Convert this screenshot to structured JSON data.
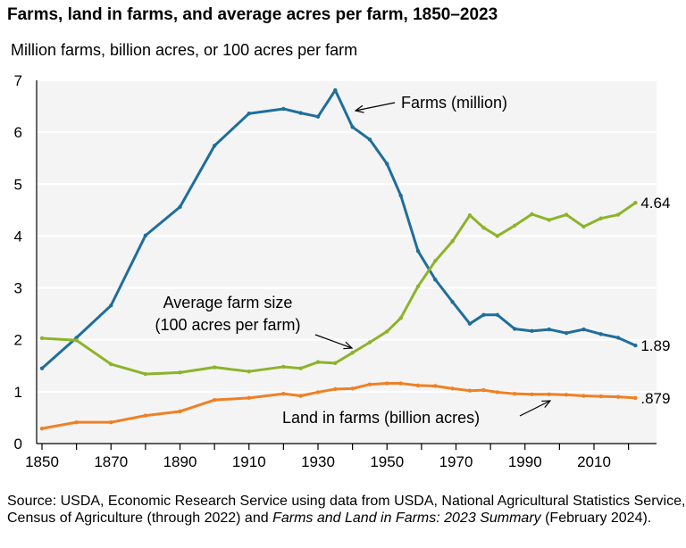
{
  "chart_data": {
    "type": "line",
    "title": "Farms, land in farms, and average acres per farm, 1850–2023",
    "subtitle": "Million farms, billion acres, or 100 acres per farm",
    "ylim": [
      0,
      7
    ],
    "yticks": [
      0,
      1,
      2,
      3,
      4,
      5,
      6,
      7
    ],
    "xlim": [
      1847,
      2027
    ],
    "xtick_labels": [
      1850,
      1870,
      1890,
      1910,
      1930,
      1950,
      1970,
      1990,
      2010
    ],
    "grid": "horizontal",
    "x": [
      1850,
      1860,
      1870,
      1880,
      1890,
      1900,
      1910,
      1920,
      1925,
      1930,
      1935,
      1940,
      1945,
      1950,
      1954,
      1959,
      1964,
      1969,
      1974,
      1978,
      1982,
      1987,
      1992,
      1997,
      2002,
      2007,
      2012,
      2017,
      2022
    ],
    "series": [
      {
        "name": "Farms (million)",
        "color": "#1f6e9c",
        "end_label": "1.89",
        "values": [
          1.45,
          2.04,
          2.66,
          4.01,
          4.56,
          5.74,
          6.36,
          6.45,
          6.37,
          6.3,
          6.81,
          6.1,
          5.86,
          5.39,
          4.78,
          3.71,
          3.16,
          2.73,
          2.31,
          2.48,
          2.48,
          2.21,
          2.17,
          2.2,
          2.13,
          2.2,
          2.11,
          2.04,
          1.89
        ]
      },
      {
        "name": "Average farm size (100 acres per farm)",
        "color": "#8db32a",
        "end_label": "4.64",
        "values": [
          2.03,
          1.99,
          1.53,
          1.34,
          1.37,
          1.47,
          1.39,
          1.48,
          1.45,
          1.57,
          1.55,
          1.75,
          1.95,
          2.16,
          2.42,
          3.03,
          3.52,
          3.9,
          4.4,
          4.16,
          4.0,
          4.2,
          4.42,
          4.31,
          4.41,
          4.18,
          4.34,
          4.41,
          4.64
        ]
      },
      {
        "name": "Land in farms (billion acres)",
        "color": "#f08024",
        "end_label": ".879",
        "values": [
          0.29,
          0.41,
          0.41,
          0.54,
          0.62,
          0.84,
          0.88,
          0.96,
          0.92,
          0.99,
          1.05,
          1.06,
          1.14,
          1.16,
          1.16,
          1.12,
          1.11,
          1.06,
          1.02,
          1.03,
          0.99,
          0.96,
          0.95,
          0.95,
          0.94,
          0.92,
          0.91,
          0.9,
          0.879
        ]
      }
    ],
    "annotations": {
      "farms": "Farms (million)",
      "size_line1": "Average farm size",
      "size_line2": "(100 acres per farm)",
      "land": "Land in farms (billion acres)"
    }
  },
  "source": {
    "text": "Source: USDA, Economic Research Service using data from USDA, National Agricultural Statistics Service, Census of Agriculture (through 2022) and ",
    "italic": "Farms and Land in Farms: 2023 Summary",
    "end": " (February 2024)."
  }
}
